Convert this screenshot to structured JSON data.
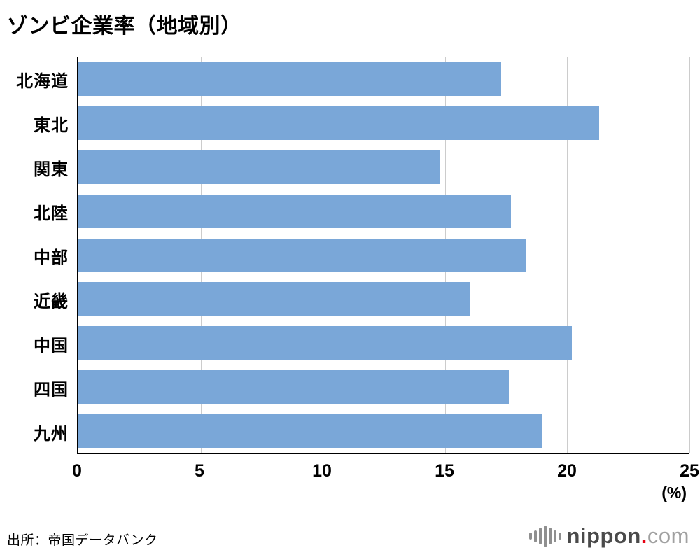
{
  "title": "ゾンビ企業率（地域別）",
  "source": "出所：帝国データバンク",
  "logo": {
    "icon": "soundwave-icon",
    "name": "nippon",
    "dot": ".",
    "tld": "com"
  },
  "chart_data": {
    "type": "bar",
    "orientation": "horizontal",
    "title": "ゾンビ企業率（地域別）",
    "categories": [
      "北海道",
      "東北",
      "関東",
      "北陸",
      "中部",
      "近畿",
      "中国",
      "四国",
      "九州"
    ],
    "values": [
      17.3,
      21.3,
      14.8,
      17.7,
      18.3,
      16.0,
      20.2,
      17.6,
      19.0
    ],
    "xlabel": "(%)",
    "xlim": [
      0,
      25
    ],
    "xticks": [
      0,
      5,
      10,
      15,
      20,
      25
    ],
    "grid": true,
    "legend": "none",
    "bar_color": "#7aa7d8",
    "gridline_color": "#cccccc",
    "axis_color": "#000000"
  }
}
